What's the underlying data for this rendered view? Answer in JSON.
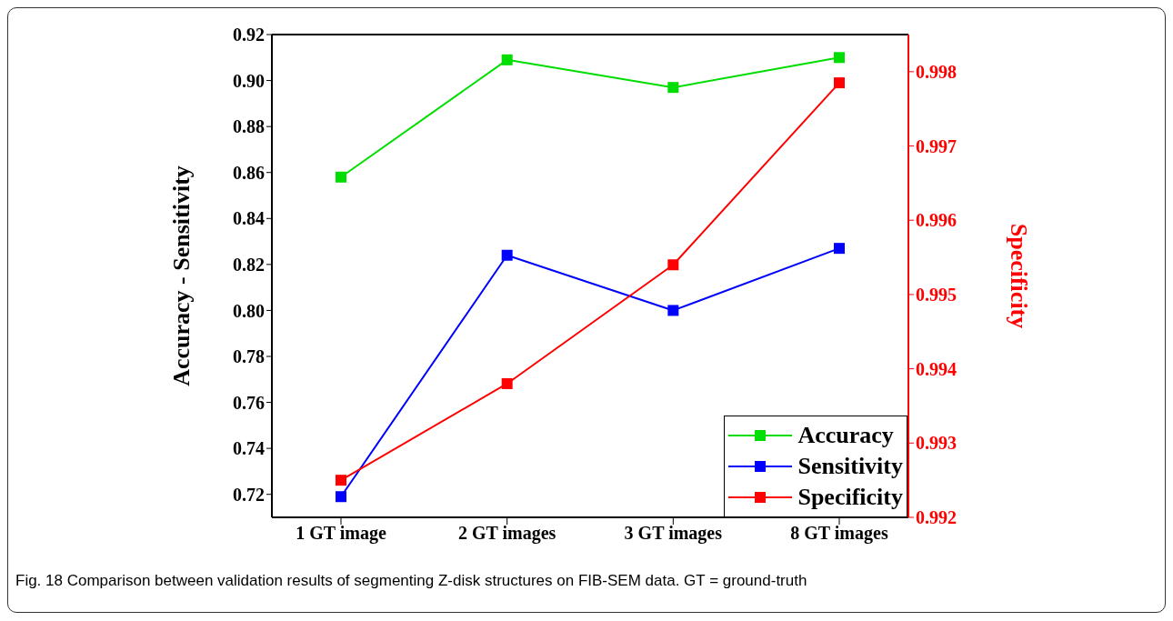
{
  "chart_data": {
    "type": "line",
    "categories": [
      "1 GT image",
      "2 GT images",
      "3 GT images",
      "8 GT images"
    ],
    "ylabel": "Accuracy - Sensitivity",
    "y2label": "Specificity",
    "series": [
      {
        "name": "Accuracy",
        "color": "#00dd00",
        "values": [
          0.858,
          0.909,
          0.897,
          0.91
        ]
      },
      {
        "name": "Sensitivity",
        "color": "#0000ff",
        "values": [
          0.719,
          0.824,
          0.8,
          0.827
        ]
      },
      {
        "name": "Specificity",
        "color": "#ff0000",
        "axis": "y2",
        "values": [
          0.9925,
          0.9938,
          0.9954,
          0.99785
        ]
      }
    ],
    "ylim": [
      0.71,
      0.92
    ],
    "yticks": [
      0.72,
      0.74,
      0.76,
      0.78,
      {
        "value": 0.8,
        "label": "0.80"
      },
      0.82,
      0.84,
      0.86,
      0.88,
      {
        "value": 0.9,
        "label": "0.90"
      },
      0.92
    ],
    "y2lim": [
      0.992,
      0.9985
    ],
    "y2ticks": [
      0.992,
      0.993,
      0.994,
      0.995,
      0.996,
      0.997,
      0.998
    ],
    "marker": "square",
    "legend": "bottom right",
    "grid": false,
    "annotations": [
      "Fig. 18 Comparison between validation results of segmenting Z-disk structures on FIB-SEM data. GT = ground-truth"
    ]
  }
}
